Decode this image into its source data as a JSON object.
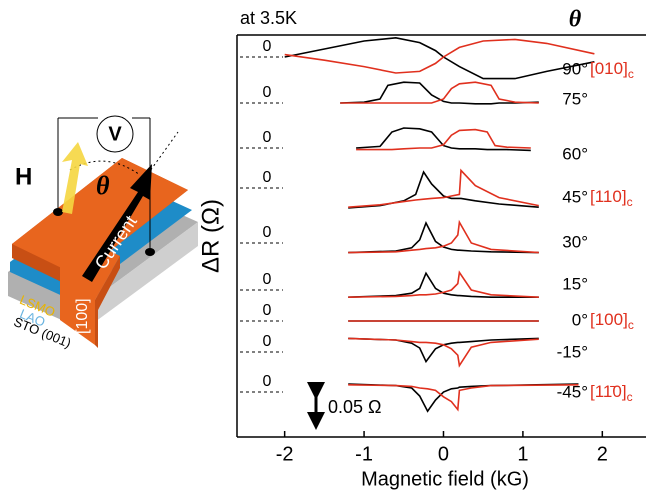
{
  "schematic": {
    "voltmeter": "V",
    "field": "H",
    "angle": "θ",
    "current": "Current",
    "direction": "[100]",
    "layers": [
      "LSMO",
      "LAO",
      "STO (001)"
    ]
  },
  "chart_data": {
    "type": "line",
    "title": "at 3.5K",
    "angle_header": "θ",
    "x_label": "Magnetic field (kG)",
    "y_label": "ΔR (Ω)",
    "xlim": [
      -2.6,
      2.55
    ],
    "xticks": [
      -2,
      -1,
      0,
      1,
      2
    ],
    "scale_bar": {
      "value": 0.05,
      "label": "0.05 Ω"
    },
    "panels": [
      {
        "angle": "90°",
        "direction": {
          "text": "[010]",
          "sub": "c"
        },
        "yticks": [
          0
        ],
        "x": [
          -2,
          -1.5,
          -1,
          -0.6,
          -0.3,
          -0.1,
          0,
          0.2,
          0.5,
          0.9,
          1.3,
          1.9
        ],
        "series": [
          {
            "color": "#000000",
            "values": [
              0,
              0.01,
              0.02,
              0.024,
              0.018,
              0.008,
              0,
              -0.012,
              -0.027,
              -0.027,
              -0.018,
              -0.006
            ]
          },
          {
            "color": "#e0301e",
            "values": [
              0.003,
              -0.004,
              -0.012,
              -0.02,
              -0.018,
              -0.008,
              0,
              0.012,
              0.02,
              0.022,
              0.017,
              0.004
            ]
          }
        ]
      },
      {
        "angle": "75°",
        "yticks": [
          0
        ],
        "x": [
          -1.3,
          -1,
          -0.8,
          -0.7,
          -0.5,
          -0.3,
          -0.15,
          0,
          0.1,
          0.2,
          0.4,
          0.6,
          0.7,
          0.9,
          1.2
        ],
        "series": [
          {
            "color": "#000000",
            "values": [
              0,
              0.001,
              0.005,
              0.022,
              0.026,
              0.025,
              0.01,
              0.002,
              0,
              0,
              -0.001,
              -0.001,
              0,
              0,
              0.001
            ]
          },
          {
            "color": "#e0301e",
            "values": [
              0,
              0,
              0,
              0,
              0,
              0,
              0,
              0.005,
              0.018,
              0.024,
              0.026,
              0.022,
              0.005,
              0.001,
              0
            ]
          }
        ]
      },
      {
        "angle": "60°",
        "yticks": [
          0
        ],
        "x": [
          -1.1,
          -0.8,
          -0.65,
          -0.5,
          -0.3,
          -0.15,
          0,
          0.1,
          0.2,
          0.4,
          0.55,
          0.65,
          0.8,
          1.1
        ],
        "series": [
          {
            "color": "#000000",
            "values": [
              0,
              0.002,
              0.02,
              0.025,
              0.024,
              0.02,
              0.003,
              0,
              -0.001,
              -0.001,
              -0.002,
              -0.002,
              -0.002,
              -0.003
            ]
          },
          {
            "color": "#e0301e",
            "values": [
              -0.002,
              -0.002,
              -0.002,
              -0.001,
              0,
              0,
              0.004,
              0.016,
              0.022,
              0.023,
              0.02,
              0.003,
              0.001,
              0
            ]
          }
        ]
      },
      {
        "angle": "45°",
        "direction": {
          "text": "[110]",
          "sub": "c"
        },
        "yticks": [
          0
        ],
        "x": [
          -1.2,
          -0.8,
          -0.5,
          -0.35,
          -0.25,
          -0.15,
          0,
          0.1,
          0.2,
          0.22,
          0.4,
          0.7,
          1.2
        ],
        "series": [
          {
            "color": "#000000",
            "values": [
              -0.025,
              -0.022,
              -0.016,
              -0.008,
              0.02,
              0.005,
              -0.01,
              -0.013,
              -0.013,
              -0.013,
              -0.016,
              -0.02,
              -0.024
            ]
          },
          {
            "color": "#e0301e",
            "values": [
              -0.024,
              -0.021,
              -0.017,
              -0.015,
              -0.014,
              -0.013,
              -0.012,
              -0.01,
              -0.008,
              0.022,
              0.003,
              -0.012,
              -0.022
            ]
          }
        ]
      },
      {
        "angle": "30°",
        "yticks": [
          0
        ],
        "x": [
          -1.2,
          -0.6,
          -0.4,
          -0.3,
          -0.22,
          -0.1,
          0,
          0.1,
          0.18,
          0.2,
          0.35,
          0.6,
          1.2
        ],
        "series": [
          {
            "color": "#000000",
            "values": [
              -0.012,
              -0.01,
              -0.006,
              0.004,
              0.025,
              0.002,
              -0.005,
              -0.008,
              -0.009,
              -0.009,
              -0.01,
              -0.011,
              -0.012
            ]
          },
          {
            "color": "#e0301e",
            "values": [
              -0.012,
              -0.011,
              -0.009,
              -0.008,
              -0.007,
              -0.006,
              -0.004,
              0,
              0.01,
              0.026,
              0,
              -0.008,
              -0.012
            ]
          }
        ]
      },
      {
        "angle": "15°",
        "yticks": [
          0
        ],
        "x": [
          -1.2,
          -0.6,
          -0.4,
          -0.3,
          -0.22,
          -0.1,
          0,
          0.1,
          0.18,
          0.2,
          0.35,
          0.6,
          1.2
        ],
        "series": [
          {
            "color": "#000000",
            "values": [
              -0.009,
              -0.007,
              -0.004,
              0.002,
              0.021,
              0.002,
              -0.004,
              -0.006,
              -0.007,
              -0.007,
              -0.008,
              -0.009,
              -0.009
            ]
          },
          {
            "color": "#e0301e",
            "values": [
              -0.009,
              -0.008,
              -0.007,
              -0.006,
              -0.006,
              -0.005,
              -0.003,
              0,
              0.008,
              0.022,
              0,
              -0.006,
              -0.009
            ]
          }
        ]
      },
      {
        "angle": "0°",
        "direction": {
          "text": "[100]",
          "sub": "c"
        },
        "yticks": [
          0
        ],
        "x": [
          -1.2,
          0,
          1.2
        ],
        "series": [
          {
            "color": "#000000",
            "values": [
              0,
              0,
              0
            ]
          },
          {
            "color": "#e0301e",
            "values": [
              0,
              0,
              0
            ]
          }
        ]
      },
      {
        "angle": "-15°",
        "yticks": [
          0
        ],
        "x": [
          -1.2,
          -0.6,
          -0.4,
          -0.3,
          -0.22,
          -0.1,
          0,
          0.1,
          0.18,
          0.2,
          0.35,
          0.6,
          1.2
        ],
        "series": [
          {
            "color": "#000000",
            "values": [
              0.017,
              0.015,
              0.011,
              0.005,
              -0.012,
              0.004,
              0.009,
              0.011,
              0.012,
              0.012,
              0.013,
              0.015,
              0.017
            ]
          },
          {
            "color": "#e0301e",
            "values": [
              0.017,
              0.015,
              0.013,
              0.012,
              0.012,
              0.011,
              0.009,
              0.004,
              -0.004,
              -0.017,
              0.006,
              0.012,
              0.016
            ]
          }
        ]
      },
      {
        "angle": "-45°",
        "direction": {
          "text": "[11̄0]",
          "sub": "c"
        },
        "yticks": [
          0
        ],
        "x": [
          -1.2,
          -0.6,
          -0.4,
          -0.3,
          -0.2,
          -0.1,
          0,
          0.1,
          0.18,
          0.2,
          0.35,
          0.6,
          1.7
        ],
        "series": [
          {
            "color": "#000000",
            "values": [
              0.01,
              0.008,
              0.005,
              -0.005,
              -0.024,
              -0.01,
              0,
              0.004,
              0.005,
              0.006,
              0.007,
              0.008,
              0.01
            ]
          },
          {
            "color": "#e0301e",
            "values": [
              0.009,
              0.008,
              0.007,
              0.005,
              0.004,
              0.002,
              -0.006,
              -0.012,
              -0.022,
              0.002,
              0.005,
              0.008,
              0.009
            ]
          }
        ]
      }
    ]
  }
}
